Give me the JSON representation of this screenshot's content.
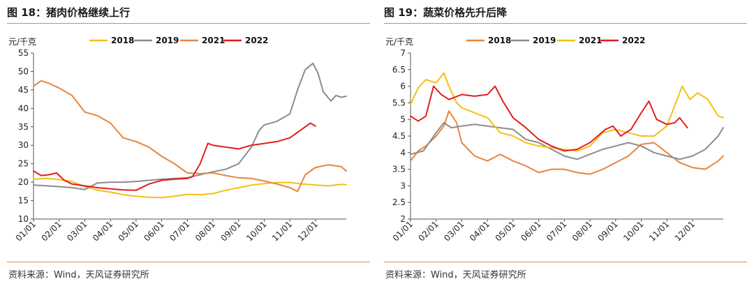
{
  "charts": [
    {
      "title": "图 18：猪肉价格继续上行",
      "source": "资料来源：Wind，天风证券研究所",
      "chart_data": {
        "type": "line",
        "title": "图 18：猪肉价格继续上行",
        "ylabel": "元/千克",
        "ylim": [
          10,
          55
        ],
        "yticks": [
          10,
          15,
          20,
          25,
          30,
          35,
          40,
          45,
          50,
          55
        ],
        "xlim": [
          0,
          12.2
        ],
        "xticks": [
          "01/01",
          "02/01",
          "03/01",
          "04/01",
          "05/01",
          "06/01",
          "07/01",
          "08/01",
          "09/01",
          "10/01",
          "11/01",
          "12/01"
        ],
        "grid": false,
        "legend": "top",
        "series": [
          {
            "name": "2018",
            "color": "#f5c012",
            "x": [
              0,
              0.5,
              1,
              1.5,
              2,
              2.5,
              3,
              3.5,
              4,
              4.5,
              5,
              5.5,
              6,
              6.5,
              7,
              7.5,
              8,
              8.5,
              9,
              9.5,
              10,
              10.5,
              11,
              11.5,
              12,
              12.2
            ],
            "y": [
              20.8,
              21.0,
              20.7,
              20.2,
              18.8,
              17.8,
              17.3,
              16.6,
              16.2,
              15.9,
              15.8,
              16.2,
              16.7,
              16.6,
              16.9,
              17.8,
              18.5,
              19.2,
              19.6,
              19.9,
              19.9,
              19.5,
              19.2,
              19.0,
              19.4,
              19.3
            ]
          },
          {
            "name": "2019",
            "color": "#8c8c8c",
            "x": [
              0,
              0.5,
              1,
              1.5,
              2,
              2.5,
              3,
              3.5,
              4,
              4.5,
              5,
              5.5,
              6,
              6.5,
              7,
              7.5,
              8,
              8.5,
              8.8,
              9,
              9.5,
              10,
              10.3,
              10.6,
              10.9,
              11.1,
              11.3,
              11.6,
              11.8,
              12,
              12.2
            ],
            "y": [
              19.2,
              19.0,
              18.8,
              18.5,
              18.0,
              19.8,
              20.0,
              20.0,
              20.2,
              20.5,
              20.8,
              21.0,
              21.2,
              22.0,
              22.8,
              23.5,
              25.0,
              29.5,
              34.0,
              35.5,
              36.5,
              38.5,
              45.0,
              50.5,
              52.2,
              49.5,
              44.5,
              42.0,
              43.5,
              43.0,
              43.3
            ]
          },
          {
            "name": "2021",
            "color": "#e8853d",
            "x": [
              0,
              0.3,
              0.6,
              1,
              1.5,
              2,
              2.5,
              3,
              3.5,
              4,
              4.5,
              5,
              5.5,
              6,
              6.5,
              7,
              7.5,
              8,
              8.5,
              9,
              9.5,
              10,
              10.3,
              10.6,
              11,
              11.5,
              12,
              12.2
            ],
            "y": [
              46.0,
              47.5,
              46.8,
              45.5,
              43.5,
              39.0,
              38.0,
              36.0,
              32.0,
              31.0,
              29.5,
              27.0,
              25.0,
              22.5,
              22.3,
              22.5,
              21.8,
              21.2,
              21.0,
              20.3,
              19.5,
              18.5,
              17.5,
              22.0,
              24.0,
              24.7,
              24.2,
              23.0
            ]
          },
          {
            "name": "2022",
            "color": "#e31e1e",
            "x": [
              0,
              0.3,
              0.6,
              0.9,
              1.2,
              1.5,
              2,
              2.5,
              3,
              3.5,
              4,
              4.5,
              5,
              5.5,
              6,
              6.2,
              6.5,
              6.8,
              7,
              7.5,
              8,
              8.5,
              9,
              9.5,
              10,
              10.3,
              10.6,
              10.8,
              11
            ],
            "y": [
              23.0,
              21.8,
              22.0,
              22.5,
              20.5,
              19.5,
              19.0,
              18.5,
              18.2,
              17.9,
              17.8,
              19.5,
              20.5,
              20.8,
              21.0,
              21.5,
              25.0,
              30.5,
              30.0,
              29.5,
              29.0,
              30.0,
              30.5,
              31.0,
              32.0,
              33.5,
              35.0,
              36.0,
              35.2
            ]
          }
        ]
      }
    },
    {
      "title": "图 19：蔬菜价格先升后降",
      "source": "资料来源：Wind，天风证券研究所",
      "chart_data": {
        "type": "line",
        "title": "图 19：蔬菜价格先升后降",
        "ylabel": "元/千克",
        "ylim": [
          2,
          7
        ],
        "yticks": [
          2,
          2.5,
          3,
          3.5,
          4,
          4.5,
          5,
          5.5,
          6,
          6.5,
          7
        ],
        "xlim": [
          0,
          12.2
        ],
        "xticks": [
          "01/01",
          "02/01",
          "03/01",
          "04/01",
          "05/01",
          "06/01",
          "07/01",
          "08/01",
          "09/01",
          "10/01",
          "11/01",
          "12/01"
        ],
        "grid": false,
        "legend": "top",
        "series": [
          {
            "name": "2018",
            "color": "#e8853d",
            "x": [
              0,
              0.3,
              0.6,
              1,
              1.3,
              1.5,
              1.8,
              2,
              2.5,
              3,
              3.5,
              4,
              4.5,
              5,
              5.5,
              6,
              6.5,
              7,
              7.5,
              8,
              8.5,
              9,
              9.5,
              10,
              10.5,
              11,
              11.5,
              12,
              12.2
            ],
            "y": [
              3.75,
              4.05,
              4.2,
              4.5,
              4.8,
              5.25,
              4.9,
              4.3,
              3.9,
              3.75,
              3.95,
              3.75,
              3.6,
              3.4,
              3.5,
              3.5,
              3.4,
              3.35,
              3.5,
              3.7,
              3.9,
              4.25,
              4.3,
              4.0,
              3.7,
              3.55,
              3.5,
              3.75,
              3.9
            ]
          },
          {
            "name": "2019",
            "color": "#8c8c8c",
            "x": [
              0,
              0.5,
              1,
              1.3,
              1.6,
              2,
              2.5,
              3,
              3.5,
              4,
              4.5,
              5,
              5.5,
              6,
              6.5,
              7,
              7.5,
              8,
              8.5,
              9,
              9.5,
              10,
              10.5,
              11,
              11.5,
              12,
              12.2
            ],
            "y": [
              3.95,
              4.05,
              4.6,
              4.9,
              4.75,
              4.8,
              4.85,
              4.8,
              4.75,
              4.7,
              4.4,
              4.3,
              4.1,
              3.9,
              3.8,
              3.95,
              4.1,
              4.2,
              4.3,
              4.2,
              4.0,
              3.9,
              3.8,
              3.9,
              4.1,
              4.5,
              4.75
            ]
          },
          {
            "name": "2021",
            "color": "#f5c012",
            "x": [
              0,
              0.3,
              0.6,
              1,
              1.3,
              1.5,
              1.8,
              2,
              2.5,
              3,
              3.5,
              4,
              4.5,
              5,
              5.5,
              6,
              6.5,
              7,
              7.5,
              8,
              8.5,
              9,
              9.5,
              10,
              10.3,
              10.6,
              10.9,
              11.2,
              11.6,
              12,
              12.2
            ],
            "y": [
              5.45,
              5.95,
              6.2,
              6.1,
              6.4,
              6.0,
              5.5,
              5.35,
              5.2,
              5.05,
              4.6,
              4.5,
              4.3,
              4.2,
              4.15,
              4.1,
              4.05,
              4.2,
              4.6,
              4.7,
              4.6,
              4.5,
              4.5,
              4.8,
              5.4,
              6.0,
              5.6,
              5.8,
              5.6,
              5.1,
              5.05
            ]
          },
          {
            "name": "2022",
            "color": "#e31e1e",
            "x": [
              0,
              0.3,
              0.6,
              0.9,
              1.2,
              1.5,
              2,
              2.5,
              3,
              3.3,
              3.6,
              4,
              4.5,
              5,
              5.5,
              6,
              6.5,
              7,
              7.3,
              7.6,
              7.9,
              8.2,
              8.6,
              9,
              9.3,
              9.6,
              10,
              10.3,
              10.5,
              10.8
            ],
            "y": [
              5.1,
              4.95,
              5.1,
              6.0,
              5.75,
              5.6,
              5.75,
              5.7,
              5.75,
              6.0,
              5.55,
              5.05,
              4.75,
              4.4,
              4.2,
              4.05,
              4.1,
              4.3,
              4.5,
              4.7,
              4.8,
              4.5,
              4.7,
              5.2,
              5.55,
              5.0,
              4.85,
              4.9,
              5.05,
              4.75
            ]
          }
        ]
      }
    }
  ]
}
